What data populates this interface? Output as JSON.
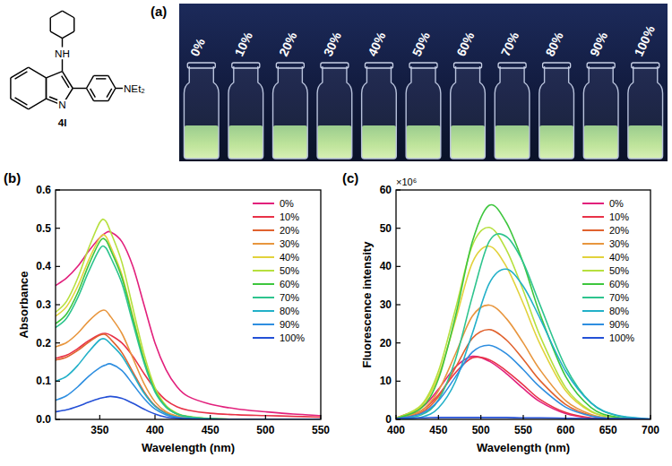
{
  "chart_data": [
    {
      "type": "line",
      "panel_label": "(b)",
      "x_label": "Wavelength (nm)",
      "y_label": "Absorbance",
      "xlim": [
        310,
        550
      ],
      "xticks": [
        350,
        400,
        450,
        500,
        550
      ],
      "ylim": [
        0,
        0.6
      ],
      "yticks": [
        {
          "value": 0,
          "label": "0.0"
        },
        {
          "value": 0.1,
          "label": "0.1"
        },
        {
          "value": 0.2,
          "label": "0.2"
        },
        {
          "value": 0.3,
          "label": "0.3"
        },
        {
          "value": 0.4,
          "label": "0.4"
        },
        {
          "value": 0.5,
          "label": "0.5"
        },
        {
          "value": 0.6,
          "label": "0.6"
        }
      ],
      "grid": false,
      "legend": "upper right",
      "x": [
        310,
        320,
        330,
        340,
        350,
        355,
        360,
        370,
        380,
        390,
        400,
        410,
        420,
        430,
        450,
        475,
        500,
        525,
        550
      ],
      "series": [
        {
          "name": "0%",
          "color": "#e2207c",
          "values": [
            0.35,
            0.37,
            0.4,
            0.44,
            0.475,
            0.487,
            0.49,
            0.465,
            0.4,
            0.3,
            0.2,
            0.13,
            0.085,
            0.06,
            0.04,
            0.027,
            0.02,
            0.014,
            0.01
          ]
        },
        {
          "name": "10%",
          "color": "#e83248",
          "values": [
            0.16,
            0.168,
            0.185,
            0.206,
            0.222,
            0.225,
            0.22,
            0.2,
            0.165,
            0.12,
            0.08,
            0.05,
            0.033,
            0.024,
            0.016,
            0.012,
            0.01,
            0.008,
            0.006
          ]
        },
        {
          "name": "20%",
          "color": "#e0622e",
          "values": [
            0.155,
            0.163,
            0.18,
            0.202,
            0.22,
            0.222,
            0.209,
            0.175,
            0.124,
            0.073,
            0.036,
            0.016,
            0.007,
            0.003,
            0.001,
            0,
            0,
            0,
            0
          ]
        },
        {
          "name": "30%",
          "color": "#e8963e",
          "values": [
            0.19,
            0.201,
            0.225,
            0.257,
            0.282,
            0.285,
            0.268,
            0.225,
            0.16,
            0.094,
            0.046,
            0.02,
            0.009,
            0.004,
            0.001,
            0,
            0,
            0,
            0
          ]
        },
        {
          "name": "40%",
          "color": "#e2d23c",
          "values": [
            0.27,
            0.295,
            0.348,
            0.417,
            0.475,
            0.48,
            0.451,
            0.379,
            0.269,
            0.158,
            0.077,
            0.034,
            0.014,
            0.007,
            0.002,
            0,
            0,
            0,
            0
          ]
        },
        {
          "name": "50%",
          "color": "#b6e03e",
          "values": [
            0.28,
            0.309,
            0.369,
            0.448,
            0.515,
            0.52,
            0.489,
            0.411,
            0.291,
            0.172,
            0.083,
            0.036,
            0.016,
            0.008,
            0.002,
            0,
            0,
            0,
            0
          ]
        },
        {
          "name": "60%",
          "color": "#3ec63e",
          "values": [
            0.25,
            0.276,
            0.331,
            0.404,
            0.465,
            0.47,
            0.442,
            0.371,
            0.263,
            0.155,
            0.075,
            0.033,
            0.014,
            0.007,
            0.002,
            0,
            0,
            0,
            0
          ]
        },
        {
          "name": "70%",
          "color": "#2ec48e",
          "values": [
            0.24,
            0.265,
            0.318,
            0.387,
            0.446,
            0.45,
            0.423,
            0.356,
            0.252,
            0.149,
            0.072,
            0.032,
            0.014,
            0.007,
            0.002,
            0,
            0,
            0,
            0
          ]
        },
        {
          "name": "80%",
          "color": "#22b0c8",
          "values": [
            0.1,
            0.113,
            0.141,
            0.177,
            0.208,
            0.21,
            0.197,
            0.166,
            0.118,
            0.069,
            0.034,
            0.015,
            0.006,
            0.003,
            0.001,
            0,
            0,
            0,
            0
          ]
        },
        {
          "name": "90%",
          "color": "#2e8ee0",
          "values": [
            0.05,
            0.062,
            0.085,
            0.113,
            0.135,
            0.142,
            0.145,
            0.128,
            0.092,
            0.055,
            0.027,
            0.012,
            0.005,
            0.002,
            0,
            0,
            0,
            0,
            0
          ]
        },
        {
          "name": "100%",
          "color": "#2450d6",
          "values": [
            0.02,
            0.025,
            0.034,
            0.045,
            0.055,
            0.058,
            0.06,
            0.055,
            0.042,
            0.027,
            0.014,
            0.006,
            0.003,
            0.001,
            0,
            0,
            0,
            0,
            0
          ]
        }
      ]
    },
    {
      "type": "line",
      "panel_label": "(c)",
      "x_label": "Wavelength (nm)",
      "y_label": "Fluorescence intensity",
      "y_scale_label": "×10⁶",
      "xlim": [
        400,
        700
      ],
      "xticks": [
        400,
        450,
        500,
        550,
        600,
        650,
        700
      ],
      "ylim": [
        0,
        60
      ],
      "yticks": [
        0,
        10,
        20,
        30,
        40,
        50,
        60
      ],
      "grid": false,
      "legend": "upper right",
      "x": [
        400,
        430,
        450,
        470,
        490,
        510,
        530,
        550,
        570,
        600,
        630,
        660,
        700
      ],
      "series": [
        {
          "name": "0%",
          "color": "#e2207c",
          "values": [
            0.4,
            3.1,
            7.9,
            13.7,
            16.5,
            15.2,
            12.0,
            8.1,
            4.6,
            1.5,
            0.3,
            0.05,
            0
          ]
        },
        {
          "name": "10%",
          "color": "#e83248",
          "values": [
            0.3,
            2.3,
            6.4,
            12.2,
            16.1,
            15.6,
            12.7,
            9.0,
            5.2,
            1.8,
            0.4,
            0.1,
            0
          ]
        },
        {
          "name": "20%",
          "color": "#e0622e",
          "values": [
            0.1,
            1.8,
            5.9,
            13.5,
            21.2,
            23.5,
            20.8,
            15.7,
            10.1,
            3.9,
            1.0,
            0.2,
            0
          ]
        },
        {
          "name": "30%",
          "color": "#e8963e",
          "values": [
            0.2,
            2.3,
            7.5,
            17.1,
            27.0,
            29.9,
            26.4,
            20.0,
            12.9,
            4.9,
            1.3,
            0.2,
            0
          ]
        },
        {
          "name": "40%",
          "color": "#e2d23c",
          "values": [
            0.3,
            3.5,
            11.4,
            25.9,
            41.0,
            45.3,
            40.0,
            30.3,
            19.6,
            7.5,
            2.0,
            0.4,
            0
          ]
        },
        {
          "name": "50%",
          "color": "#b6e03e",
          "values": [
            0.3,
            3.8,
            12.6,
            28.8,
            45.5,
            50.2,
            44.4,
            33.7,
            21.7,
            8.3,
            2.2,
            0.4,
            0
          ]
        },
        {
          "name": "60%",
          "color": "#3ec63e",
          "values": [
            0.2,
            3.0,
            10.6,
            26.9,
            46.5,
            56.0,
            51.5,
            40.9,
            27.4,
            11.2,
            3.1,
            0.6,
            0
          ]
        },
        {
          "name": "70%",
          "color": "#2ec48e",
          "values": [
            0.05,
            1.2,
            5.1,
            15.6,
            32.2,
            46.6,
            47.8,
            41.0,
            29.8,
            13.7,
            4.3,
            1.0,
            0.05
          ]
        },
        {
          "name": "80%",
          "color": "#22b0c8",
          "values": [
            0,
            0.6,
            3.0,
            9.9,
            22.5,
            35.6,
            39.3,
            34.8,
            26.3,
            12.6,
            4.3,
            1.1,
            0.1
          ]
        },
        {
          "name": "90%",
          "color": "#2e8ee0",
          "values": [
            0.1,
            1.5,
            4.9,
            11.1,
            17.6,
            19.4,
            17.2,
            13.0,
            8.4,
            3.2,
            0.9,
            0.2,
            0
          ]
        },
        {
          "name": "100%",
          "color": "#2450d6",
          "values": [
            0.3,
            0.4,
            0.5,
            0.5,
            0.5,
            0.5,
            0.5,
            0.4,
            0.4,
            0.3,
            0.2,
            0.2,
            0.1
          ]
        }
      ]
    }
  ],
  "photo": {
    "panel_label": "(a)",
    "labels": [
      "0%",
      "10%",
      "20%",
      "30%",
      "40%",
      "50%",
      "60%",
      "70%",
      "80%",
      "90%",
      "100%"
    ]
  },
  "structure": {
    "compound": "4l",
    "amine": "NH",
    "ring_atom": "N",
    "substituent": "NEt₂"
  }
}
